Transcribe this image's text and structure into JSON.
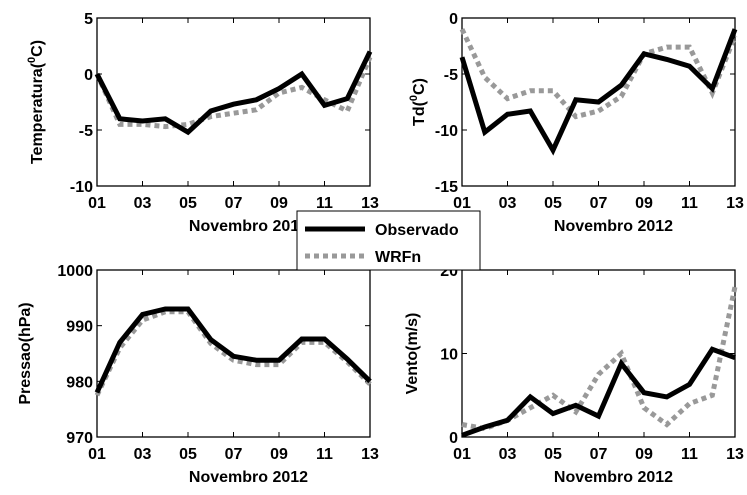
{
  "legend": {
    "placement": "center",
    "entries": [
      {
        "label": "Observado",
        "color": "#000000",
        "style": "solid"
      },
      {
        "label": "WRFn",
        "color": "#999999",
        "style": "dotted"
      }
    ]
  },
  "chart_data": [
    {
      "type": "line",
      "title": "",
      "xlabel": "Novembro 2012",
      "ylabel": "Temperatura(°C)",
      "ylabel_main": "Temperatura(",
      "ylabel_sup": "0",
      "ylabel_tail": "C)",
      "x": [
        1,
        2,
        3,
        4,
        5,
        6,
        7,
        8,
        9,
        10,
        11,
        12,
        13
      ],
      "xticks": [
        "01",
        "03",
        "05",
        "07",
        "09",
        "11",
        "13"
      ],
      "yticks": [
        "-10",
        "-5",
        "0",
        "5"
      ],
      "xlim": [
        1,
        13
      ],
      "ylim": [
        -10,
        5
      ],
      "grid": false,
      "series": [
        {
          "name": "Observado",
          "values": [
            0,
            -4,
            -4.2,
            -4,
            -5.2,
            -3.3,
            -2.7,
            -2.3,
            -1.3,
            0,
            -2.8,
            -2.2,
            2
          ]
        },
        {
          "name": "WRFn",
          "values": [
            0,
            -4.5,
            -4.5,
            -4.7,
            -4.5,
            -3.8,
            -3.5,
            -3.2,
            -1.7,
            -1.2,
            -2.3,
            -3.3,
            1.5
          ]
        }
      ]
    },
    {
      "type": "line",
      "title": "",
      "xlabel": "Novembro 2012",
      "ylabel": "Td(°C)",
      "ylabel_main": "Td(",
      "ylabel_sup": "0",
      "ylabel_tail": "C)",
      "x": [
        1,
        2,
        3,
        4,
        5,
        6,
        7,
        8,
        9,
        10,
        11,
        12,
        13
      ],
      "xticks": [
        "01",
        "03",
        "05",
        "07",
        "09",
        "11",
        "13"
      ],
      "yticks": [
        "-15",
        "-10",
        "-5",
        "0"
      ],
      "xlim": [
        1,
        13
      ],
      "ylim": [
        -15,
        0
      ],
      "grid": false,
      "series": [
        {
          "name": "Observado",
          "values": [
            -3.5,
            -10.2,
            -8.6,
            -8.3,
            -11.8,
            -7.3,
            -7.5,
            -6,
            -3.2,
            -3.7,
            -4.3,
            -6.3,
            -1
          ]
        },
        {
          "name": "WRFn",
          "values": [
            -1,
            -5.3,
            -7.2,
            -6.5,
            -6.5,
            -8.8,
            -8.3,
            -7,
            -3.2,
            -2.6,
            -2.6,
            -6.7,
            -1.6
          ]
        }
      ]
    },
    {
      "type": "line",
      "title": "",
      "xlabel": "Novembro 2012",
      "ylabel": "Pressao(hPa)",
      "ylabel_main": "Pressao(hPa)",
      "ylabel_sup": "",
      "ylabel_tail": "",
      "x": [
        1,
        2,
        3,
        4,
        5,
        6,
        7,
        8,
        9,
        10,
        11,
        12,
        13
      ],
      "xticks": [
        "01",
        "03",
        "05",
        "07",
        "09",
        "11",
        "13"
      ],
      "yticks": [
        "970",
        "980",
        "990",
        "1000"
      ],
      "xlim": [
        1,
        13
      ],
      "ylim": [
        970,
        1000
      ],
      "grid": false,
      "series": [
        {
          "name": "Observado",
          "values": [
            978,
            987,
            992,
            993,
            993,
            987.5,
            984.5,
            983.8,
            983.8,
            987.6,
            987.6,
            984,
            980
          ]
        },
        {
          "name": "WRFn",
          "values": [
            977.5,
            986,
            991,
            992.5,
            992.5,
            986.8,
            983.8,
            983,
            983,
            987,
            987,
            983.5,
            979.5
          ]
        }
      ]
    },
    {
      "type": "line",
      "title": "",
      "xlabel": "Novembro 2012",
      "ylabel": "Vento(m/s)",
      "ylabel_main": "Vento(m/s)",
      "ylabel_sup": "",
      "ylabel_tail": "",
      "x": [
        1,
        2,
        3,
        4,
        5,
        6,
        7,
        8,
        9,
        10,
        11,
        12,
        13
      ],
      "xticks": [
        "01",
        "03",
        "05",
        "07",
        "09",
        "11",
        "13"
      ],
      "yticks": [
        "0",
        "10",
        "20"
      ],
      "xlim": [
        1,
        13
      ],
      "ylim": [
        0,
        20
      ],
      "grid": false,
      "series": [
        {
          "name": "Observado",
          "values": [
            0.2,
            1.2,
            2,
            4.8,
            2.8,
            3.8,
            2.5,
            8.8,
            5.3,
            4.8,
            6.3,
            10.5,
            9.5
          ]
        },
        {
          "name": "WRFn",
          "values": [
            1.5,
            1,
            2,
            3.5,
            5,
            3,
            7.5,
            10,
            3.5,
            1.5,
            4,
            5,
            18
          ]
        }
      ]
    }
  ]
}
